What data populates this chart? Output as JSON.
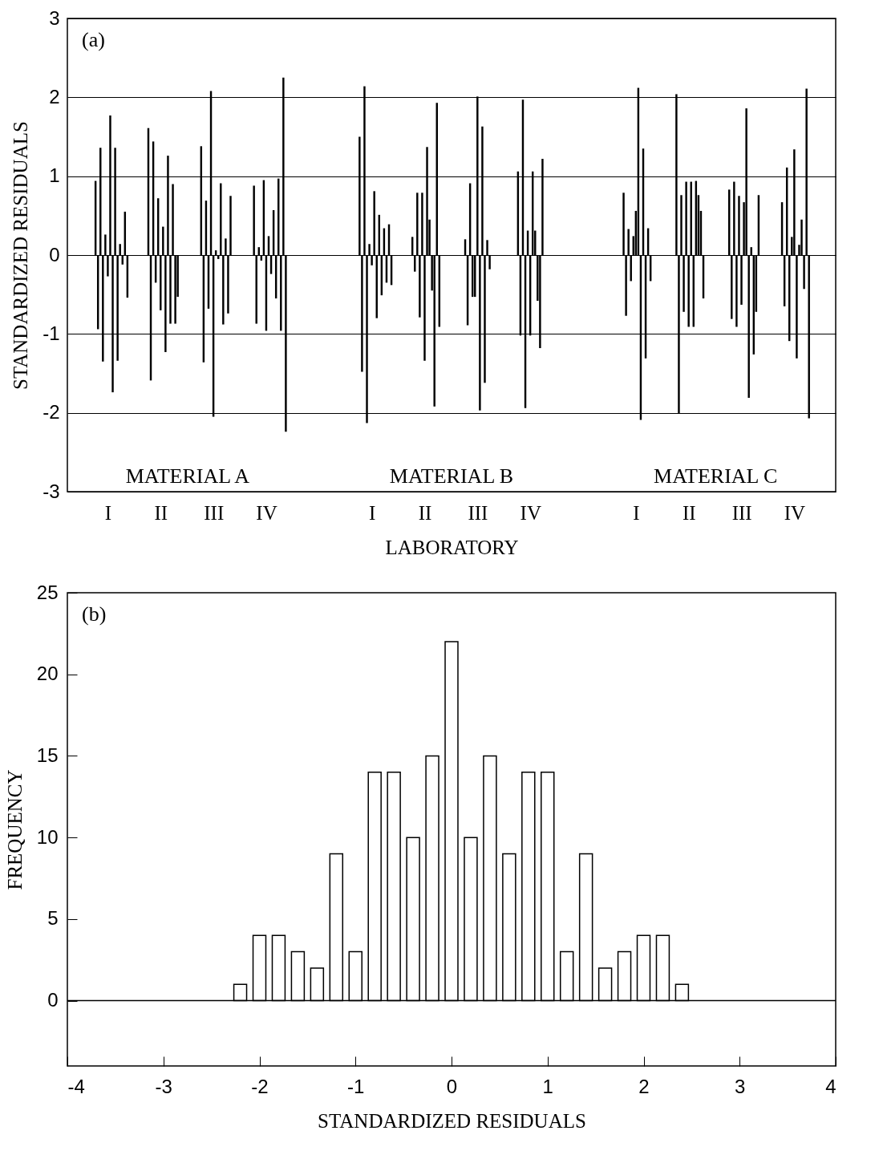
{
  "chart_data": [
    {
      "type": "bar",
      "ylabel": "STANDARDIZED RESIDUALS",
      "xlabel": "LABORATORY",
      "grid": "y",
      "ylim": [
        -3,
        3
      ],
      "yticks": [
        -3,
        -2,
        -1,
        0,
        1,
        2,
        3
      ],
      "annotations": [
        "(a)",
        "MATERIAL A",
        "MATERIAL B",
        "MATERIAL C"
      ],
      "categories": [
        "I",
        "II",
        "III",
        "IV",
        null,
        "I",
        "II",
        "III",
        "IV",
        null,
        "I",
        "II",
        "III",
        "IV"
      ],
      "series": [
        {
          "color": "#000000",
          "values": [
            0.94,
            1.61,
            1.38,
            0.88,
            null,
            1.5,
            0.23,
            0.2,
            1.06,
            null,
            0.79,
            2.04,
            0.83,
            0.67
          ]
        },
        {
          "color": "#000000",
          "values": [
            -0.94,
            -1.59,
            -1.36,
            -0.87,
            null,
            -1.48,
            -0.21,
            -0.89,
            -1.02,
            null,
            -0.77,
            -2.01,
            -0.81,
            -0.65
          ]
        },
        {
          "color": "#000000",
          "values": [
            1.36,
            1.44,
            0.69,
            0.1,
            null,
            2.14,
            0.79,
            0.91,
            1.97,
            null,
            0.33,
            0.76,
            0.93,
            1.11
          ]
        },
        {
          "color": "#000000",
          "values": [
            -1.35,
            -0.35,
            -0.68,
            -0.07,
            null,
            -2.13,
            -0.79,
            -0.53,
            -1.94,
            null,
            -0.33,
            -0.72,
            -0.91,
            -1.09
          ]
        },
        {
          "color": "#000000",
          "values": [
            0.26,
            0.72,
            2.08,
            0.95,
            null,
            0.14,
            0.79,
            -0.53,
            0.31,
            null,
            0.24,
            0.93,
            0.75,
            0.23
          ]
        },
        {
          "color": "#000000",
          "values": [
            -0.27,
            -0.7,
            -2.05,
            -0.96,
            null,
            -0.13,
            -1.34,
            2.01,
            -1.02,
            null,
            0.56,
            -0.91,
            -0.63,
            1.34
          ]
        },
        {
          "color": "#000000",
          "values": [
            1.77,
            0.36,
            0.06,
            0.24,
            null,
            0.81,
            1.37,
            -1.97,
            1.06,
            null,
            2.12,
            0.93,
            0.67,
            -1.31
          ]
        },
        {
          "color": "#000000",
          "values": [
            -1.74,
            -1.23,
            -0.05,
            -0.24,
            null,
            -0.8,
            0.45,
            1.63,
            0.31,
            null,
            -2.09,
            -0.91,
            1.86,
            0.13
          ]
        },
        {
          "color": "#000000",
          "values": [
            1.36,
            1.26,
            0.91,
            0.57,
            null,
            0.51,
            -0.45,
            -1.62,
            -0.58,
            null,
            1.35,
            0.94,
            -1.81,
            0.45
          ]
        },
        {
          "color": "#000000",
          "values": [
            -1.34,
            -0.87,
            -0.88,
            -0.55,
            null,
            -0.51,
            -1.92,
            0.19,
            -1.18,
            null,
            -1.31,
            0.76,
            0.1,
            -0.43
          ]
        },
        {
          "color": "#000000",
          "values": [
            0.14,
            0.9,
            0.21,
            0.97,
            null,
            0.34,
            1.93,
            -0.18,
            1.22,
            null,
            0.34,
            0.56,
            -1.26,
            2.11
          ]
        },
        {
          "color": "#000000",
          "values": [
            -0.12,
            -0.87,
            -0.74,
            -0.96,
            null,
            -0.35,
            -0.91,
            null,
            null,
            null,
            -0.33,
            -0.55,
            -0.72,
            -2.07
          ]
        },
        {
          "color": "#000000",
          "values": [
            0.55,
            -0.53,
            0.75,
            2.25,
            null,
            0.39,
            null,
            null,
            null,
            null,
            null,
            null,
            0.76,
            null
          ]
        },
        {
          "color": "#000000",
          "values": [
            -0.54,
            null,
            null,
            -2.24,
            null,
            -0.38,
            null,
            null,
            null,
            null,
            null,
            null,
            null,
            null
          ]
        }
      ]
    },
    {
      "type": "histogram",
      "ylabel": "FREQUENCY",
      "xlabel": "STANDARDIZED RESIDUALS",
      "color": "#ffffff",
      "xlim": [
        -4,
        4
      ],
      "xticks": [
        -4,
        -3,
        -2,
        -1,
        0,
        1,
        2,
        3,
        4
      ],
      "ylim": [
        -4,
        25
      ],
      "yticks": [
        0,
        5,
        10,
        15,
        20,
        25
      ],
      "annotations": [
        "(b)"
      ],
      "ref_lines": [
        {
          "axis": "y",
          "value": 0
        }
      ],
      "bins": [
        -2.3,
        -2.1,
        -1.9,
        -1.7,
        -1.5,
        -1.3,
        -1.1,
        -0.9,
        -0.7,
        -0.5,
        -0.3,
        -0.1,
        0.1,
        0.3,
        0.5,
        0.7,
        0.9,
        1.1,
        1.3,
        1.5,
        1.7,
        1.9,
        2.1,
        2.3,
        2.5
      ],
      "values": [
        1,
        4,
        4,
        3,
        2,
        9,
        3,
        14,
        14,
        10,
        15,
        22,
        10,
        15,
        9,
        14,
        14,
        3,
        9,
        2,
        3,
        4,
        4,
        1
      ]
    }
  ]
}
